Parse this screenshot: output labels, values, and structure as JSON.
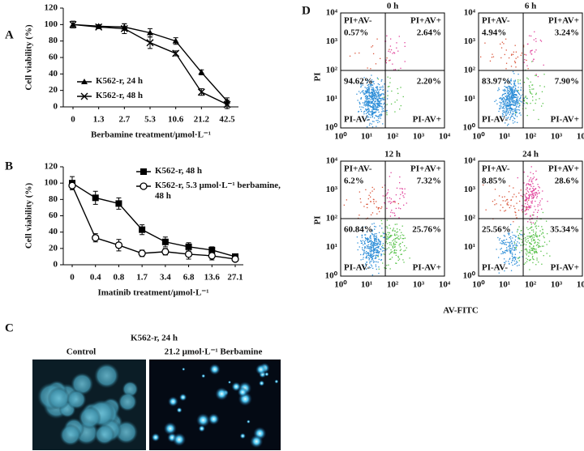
{
  "panel_labels": [
    "A",
    "B",
    "C",
    "D"
  ],
  "chart_data": [
    {
      "type": "line",
      "categories": [
        "0",
        "1.3",
        "2.7",
        "5.3",
        "10.6",
        "21.2",
        "42.5"
      ],
      "x_label": "Berbamine treatment/μmol·L⁻¹",
      "y_label": "Cell viability (%)",
      "ylim": [
        0,
        120
      ],
      "yticks": [
        0,
        20,
        40,
        60,
        80,
        100,
        120
      ],
      "series": [
        {
          "name": "K562-r, 24 h",
          "color": "#000000",
          "marker": "triangle",
          "values": [
            100,
            98,
            97,
            90,
            80,
            42,
            7
          ],
          "errors": [
            4,
            2,
            4,
            5,
            4,
            3,
            4
          ]
        },
        {
          "name": "K562-r, 48 h",
          "color": "#000000",
          "marker": "x",
          "values": [
            100,
            97,
            95,
            78,
            65,
            18,
            3
          ],
          "errors": [
            4,
            2,
            6,
            7,
            3,
            4,
            5
          ]
        }
      ]
    },
    {
      "type": "line",
      "categories": [
        "0",
        "0.4",
        "0.8",
        "1.7",
        "3.4",
        "6.8",
        "13.6",
        "27.1"
      ],
      "x_label": "Imatinib treatment/μmol·L⁻¹",
      "y_label": "Cell viability (%)",
      "ylim": [
        0,
        120
      ],
      "yticks": [
        0,
        20,
        40,
        60,
        80,
        100,
        120
      ],
      "series": [
        {
          "name": "K562-r, 48 h",
          "color": "#000000",
          "marker": "square",
          "values": [
            100,
            82,
            75,
            43,
            28,
            22,
            18,
            10
          ],
          "errors": [
            8,
            8,
            7,
            6,
            6,
            5,
            4,
            3
          ]
        },
        {
          "name": "K562-r, 5.3 μmol·L⁻¹ berbamine, 48 h",
          "color": "#000000",
          "marker": "circle-open",
          "values": [
            97,
            33,
            24,
            14,
            16,
            13,
            11,
            7
          ],
          "errors": [
            5,
            5,
            7,
            4,
            4,
            6,
            5,
            3
          ]
        }
      ]
    }
  ],
  "micrographs": {
    "title": "K562-r, 24 h",
    "left_label": "Control",
    "right_label": "21.2 μmol·L⁻¹ Berbamine"
  },
  "flow_cytometry": {
    "y_label": "PI",
    "x_label": "AV-FITC",
    "log_ticks": [
      "10⁰",
      "10¹",
      "10²",
      "10³",
      "10⁴"
    ],
    "panels": [
      {
        "title": "0 h",
        "upper_left": {
          "label": "PI+AV-",
          "value": "0.57%"
        },
        "upper_right": {
          "label": "PI+AV+",
          "value": "2.64%"
        },
        "lower_left": {
          "label": "PI-AV-",
          "value": "94.62%"
        },
        "lower_right": {
          "label": "PI-AV+",
          "value": "2.20%"
        }
      },
      {
        "title": "6 h",
        "upper_left": {
          "label": "PI+AV-",
          "value": "4.94%"
        },
        "upper_right": {
          "label": "PI+AV+",
          "value": "3.24%"
        },
        "lower_left": {
          "label": "PI-AV-",
          "value": "83.97%"
        },
        "lower_right": {
          "label": "PI-AV+",
          "value": "7.90%"
        }
      },
      {
        "title": "12 h",
        "upper_left": {
          "label": "PI+AV-",
          "value": "6.2%"
        },
        "upper_right": {
          "label": "PI+AV+",
          "value": "7.32%"
        },
        "lower_left": {
          "label": "PI-AV-",
          "value": "60.84%"
        },
        "lower_right": {
          "label": "PI-AV+",
          "value": "25.76%"
        }
      },
      {
        "title": "24 h",
        "upper_left": {
          "label": "PI+AV-",
          "value": "8.85%"
        },
        "upper_right": {
          "label": "PI+AV+",
          "value": "28.6%"
        },
        "lower_left": {
          "label": "PI-AV-",
          "value": "25.56%"
        },
        "lower_right": {
          "label": "PI-AV+",
          "value": "35.34%"
        }
      }
    ]
  }
}
